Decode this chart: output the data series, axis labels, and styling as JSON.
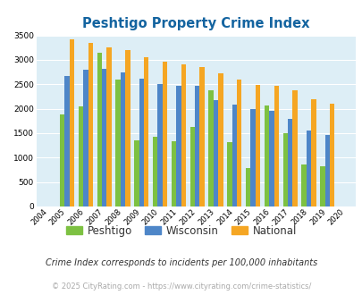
{
  "title": "Peshtigo Property Crime Index",
  "years": [
    2004,
    2005,
    2006,
    2007,
    2008,
    2009,
    2010,
    2011,
    2012,
    2013,
    2014,
    2015,
    2016,
    2017,
    2018,
    2019,
    2020
  ],
  "peshtigo": [
    0,
    1880,
    2050,
    3150,
    2600,
    1350,
    1420,
    1330,
    1630,
    2380,
    1310,
    780,
    2070,
    1500,
    860,
    830,
    0
  ],
  "wisconsin": [
    0,
    2670,
    2800,
    2820,
    2740,
    2610,
    2510,
    2460,
    2470,
    2170,
    2090,
    1990,
    1950,
    1790,
    1550,
    1460,
    0
  ],
  "national": [
    0,
    3420,
    3340,
    3260,
    3200,
    3050,
    2960,
    2910,
    2860,
    2730,
    2600,
    2490,
    2470,
    2370,
    2200,
    2110,
    0
  ],
  "peshtigo_color": "#7dc142",
  "wisconsin_color": "#4e86c8",
  "national_color": "#f5a623",
  "bg_color": "#ddeef6",
  "ylim": [
    0,
    3500
  ],
  "yticks": [
    0,
    500,
    1000,
    1500,
    2000,
    2500,
    3000,
    3500
  ],
  "footnote1": "Crime Index corresponds to incidents per 100,000 inhabitants",
  "footnote2": "© 2025 CityRating.com - https://www.cityrating.com/crime-statistics/",
  "title_color": "#1464a0",
  "footnote1_color": "#333333",
  "footnote2_color": "#aaaaaa",
  "legend_text_color": "#333333"
}
